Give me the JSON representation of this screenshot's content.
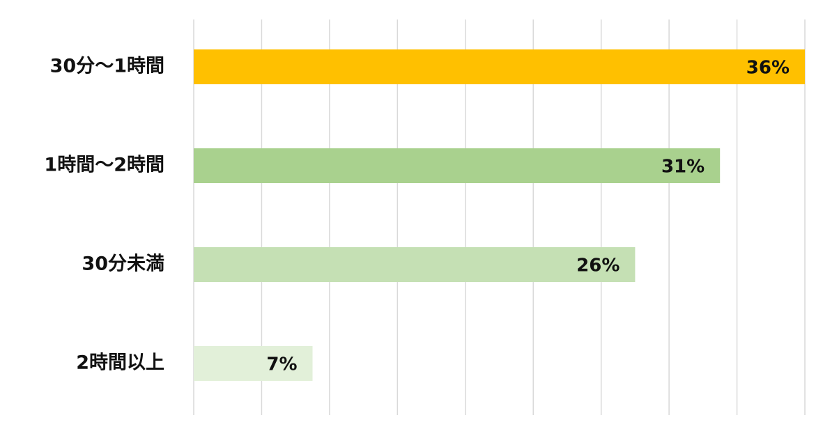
{
  "chart_data": {
    "type": "hbar",
    "categories": [
      "30分～1時間",
      "1時間～2時間",
      "30分未満",
      "2時間以上"
    ],
    "values": [
      36,
      31,
      26,
      7
    ],
    "value_labels": [
      "36%",
      "31%",
      "26%",
      "7%"
    ],
    "colors": [
      "#ffc000",
      "#a9d18e",
      "#c5e0b4",
      "#e2f0d9"
    ],
    "xlim": [
      0,
      36
    ],
    "xticks": [
      0,
      4,
      8,
      12,
      16,
      20,
      24,
      28,
      32,
      36
    ],
    "grid": true
  }
}
